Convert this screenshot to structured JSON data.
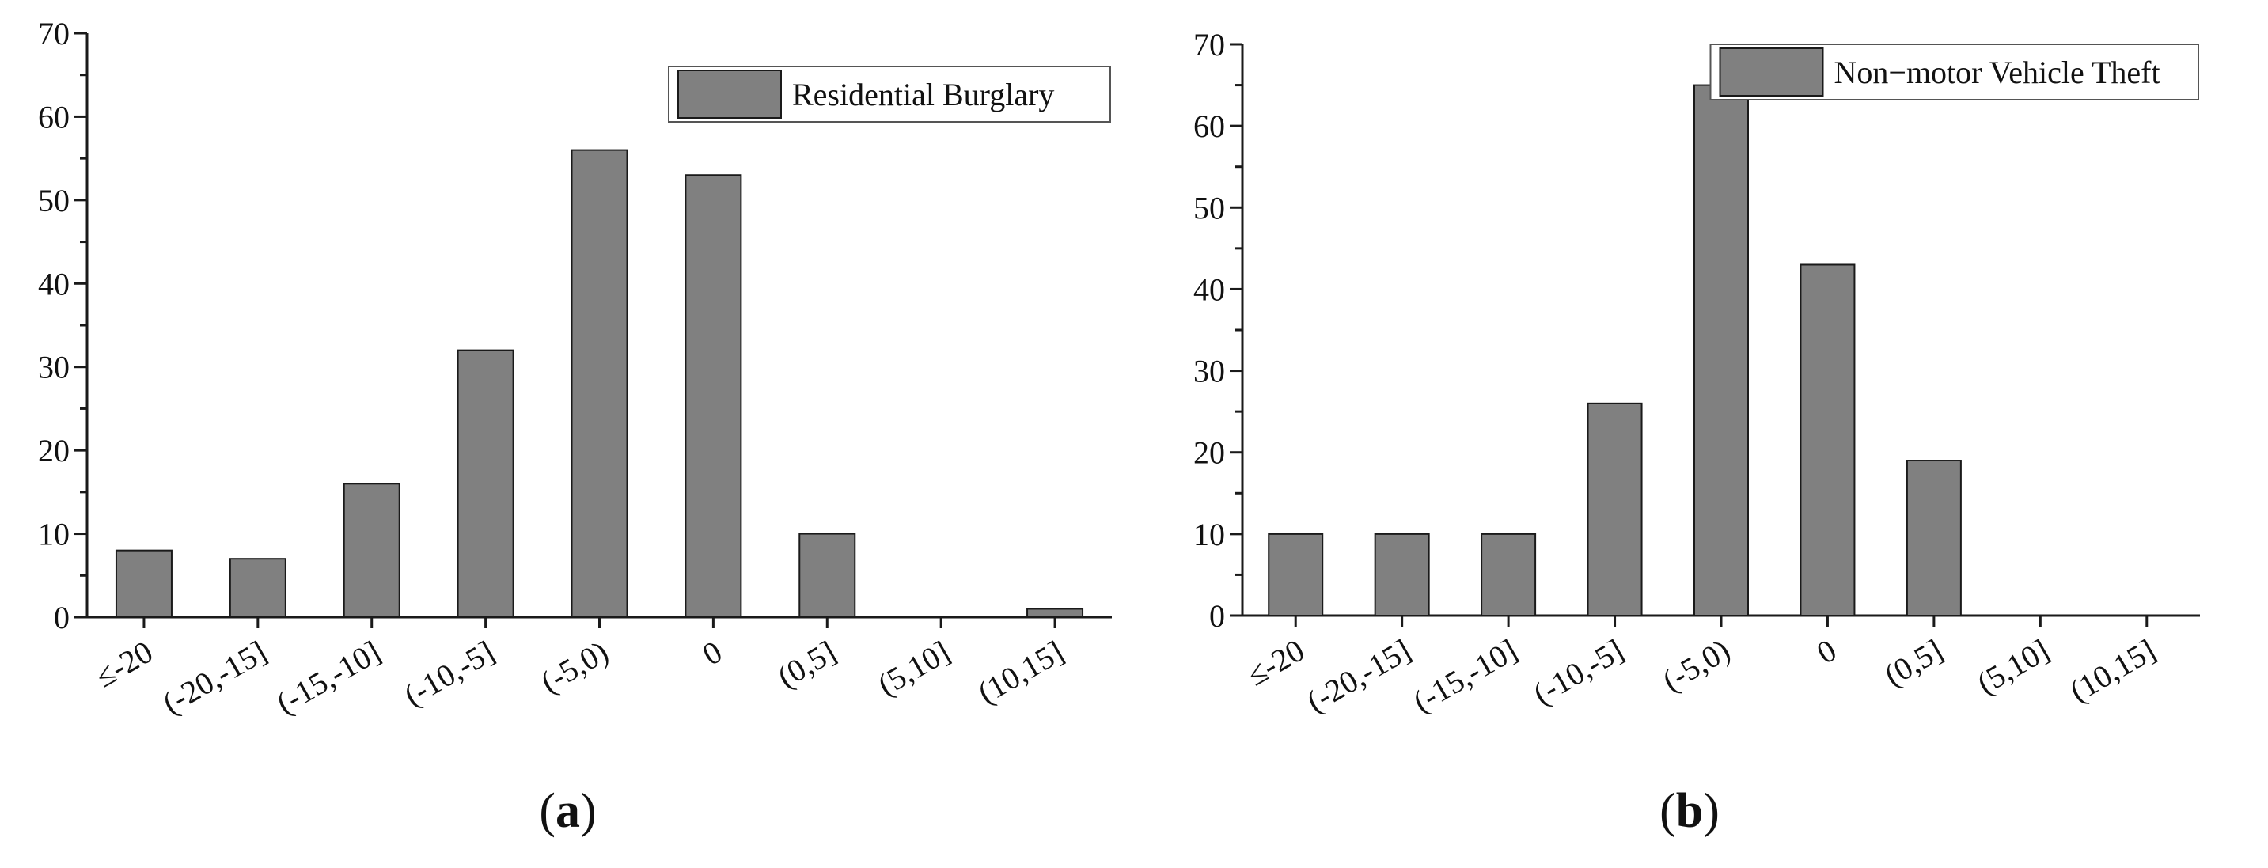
{
  "colors": {
    "bar_fill": "#808080",
    "bar_stroke": "#1a1a1a",
    "axis": "#1a1a1a",
    "background": "#ffffff"
  },
  "chart_data": [
    {
      "type": "bar",
      "panel_label": "(a)",
      "panel_letter": "a",
      "legend": "Residential Burglary",
      "legend_position": "top-right",
      "categories": [
        "≤-20",
        "(-20,-15]",
        "(-15,-10]",
        "(-10,-5]",
        "(-5,0)",
        "0",
        "(0,5]",
        "(5,10]",
        "(10,15]"
      ],
      "series": [
        {
          "name": "Residential Burglary",
          "values": [
            8,
            7,
            16,
            32,
            56,
            53,
            10,
            0,
            1
          ]
        }
      ],
      "ylim": [
        0,
        70
      ],
      "yticks": [
        "0",
        "10",
        "20",
        "30",
        "40",
        "50",
        "60",
        "70"
      ],
      "grid": false
    },
    {
      "type": "bar",
      "panel_label": "(b)",
      "panel_letter": "b",
      "legend": "Non−motor Vehicle Theft",
      "legend_position": "top-right",
      "categories": [
        "≤-20",
        "(-20,-15]",
        "(-15,-10]",
        "(-10,-5]",
        "(-5,0)",
        "0",
        "(0,5]",
        "(5,10]",
        "(10,15]"
      ],
      "series": [
        {
          "name": "Non−motor Vehicle Theft",
          "values": [
            10,
            10,
            10,
            26,
            65,
            43,
            19,
            0,
            0
          ]
        }
      ],
      "ylim": [
        0,
        70
      ],
      "yticks": [
        "0",
        "10",
        "20",
        "30",
        "40",
        "50",
        "60",
        "70"
      ],
      "grid": false
    }
  ]
}
